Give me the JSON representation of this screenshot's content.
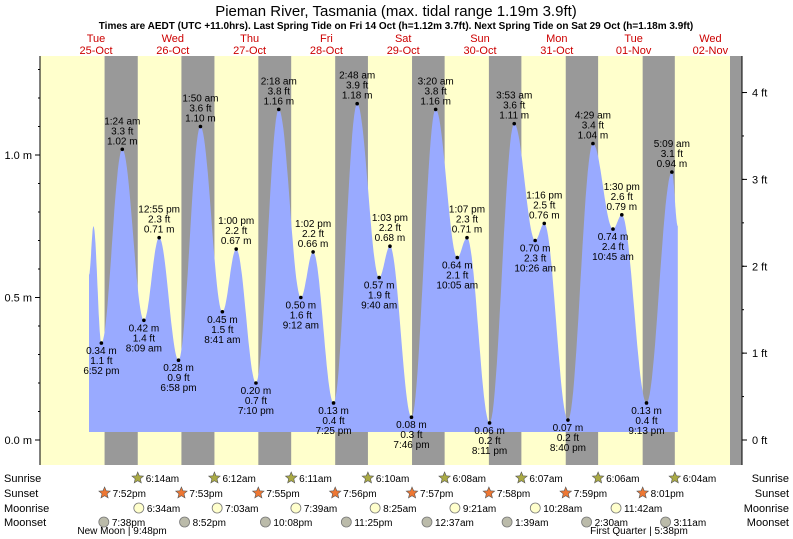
{
  "title": "Pieman River, Tasmania (max. tidal range 1.19m 3.9ft)",
  "subtitle": "Times are AEDT (UTC +11.0hrs). Last Spring Tide on Fri 14 Oct (h=1.12m 3.7ft). Next Spring Tide on Sat 29 Oct (h=1.18m 3.9ft)",
  "colors": {
    "day": "#ffffcc",
    "night": "#999999",
    "water": "#99aaff",
    "date_red": "#cc0000",
    "sun_star": "#aaaa44",
    "sunset_star": "#ee7733",
    "moonrise": "#ffffcc",
    "moonset": "#bbbbaa"
  },
  "chart_data": {
    "type": "area",
    "title": "Pieman River, Tasmania (max. tidal range 1.19m 3.9ft)",
    "ylim_m": [
      -0.06,
      1.37
    ],
    "x_range_hours": [
      0,
      196
    ],
    "left_axis": [
      {
        "v": 0.0,
        "label": "0.0 m"
      },
      {
        "v": 0.5,
        "label": "0.5 m"
      },
      {
        "v": 1.0,
        "label": "1.0 m"
      }
    ],
    "right_axis": [
      {
        "ft": 0,
        "label": "0 ft"
      },
      {
        "ft": 1,
        "label": "1 ft"
      },
      {
        "ft": 2,
        "label": "2 ft"
      },
      {
        "ft": 3,
        "label": "3 ft"
      },
      {
        "ft": 4,
        "label": "4 ft"
      }
    ],
    "days": [
      {
        "dow": "Tue",
        "date": "25-Oct"
      },
      {
        "dow": "Wed",
        "date": "26-Oct"
      },
      {
        "dow": "Thu",
        "date": "27-Oct"
      },
      {
        "dow": "Fri",
        "date": "28-Oct"
      },
      {
        "dow": "Sat",
        "date": "29-Oct"
      },
      {
        "dow": "Sun",
        "date": "30-Oct"
      },
      {
        "dow": "Mon",
        "date": "31-Oct"
      },
      {
        "dow": "Tue",
        "date": "01-Nov"
      },
      {
        "dow": "Wed",
        "date": "02-Nov"
      }
    ],
    "tides": [
      {
        "t": 18.87,
        "h": 0.34,
        "time": "6:52 pm",
        "ft": "1.1 ft",
        "m": "0.34 m"
      },
      {
        "t": 25.4,
        "h": 1.02,
        "time": "1:24 am",
        "ft": "3.3 ft",
        "m": "1.02 m"
      },
      {
        "t": 32.15,
        "h": 0.42,
        "time": "8:09 am",
        "ft": "1.4 ft",
        "m": "0.42 m"
      },
      {
        "t": 36.92,
        "h": 0.71,
        "time": "12:55 pm",
        "ft": "2.3 ft",
        "m": "0.71 m"
      },
      {
        "t": 42.97,
        "h": 0.28,
        "time": "6:58 pm",
        "ft": "0.9 ft",
        "m": "0.28 m"
      },
      {
        "t": 49.83,
        "h": 1.1,
        "time": "1:50 am",
        "ft": "3.6 ft",
        "m": "1.10 m"
      },
      {
        "t": 56.68,
        "h": 0.45,
        "time": "8:41 am",
        "ft": "1.5 ft",
        "m": "0.45 m"
      },
      {
        "t": 61.0,
        "h": 0.67,
        "time": "1:00 pm",
        "ft": "2.2 ft",
        "m": "0.67 m"
      },
      {
        "t": 67.17,
        "h": 0.2,
        "time": "7:10 pm",
        "ft": "0.7 ft",
        "m": "0.20 m"
      },
      {
        "t": 74.3,
        "h": 1.16,
        "time": "2:18 am",
        "ft": "3.8 ft",
        "m": "1.16 m"
      },
      {
        "t": 81.2,
        "h": 0.5,
        "time": "9:12 am",
        "ft": "1.6 ft",
        "m": "0.50 m"
      },
      {
        "t": 85.03,
        "h": 0.66,
        "time": "1:02 pm",
        "ft": "2.2 ft",
        "m": "0.66 m"
      },
      {
        "t": 91.42,
        "h": 0.13,
        "time": "7:25 pm",
        "ft": "0.4 ft",
        "m": "0.13 m"
      },
      {
        "t": 98.8,
        "h": 1.18,
        "time": "2:48 am",
        "ft": "3.9 ft",
        "m": "1.18 m"
      },
      {
        "t": 105.67,
        "h": 0.57,
        "time": "9:40 am",
        "ft": "1.9 ft",
        "m": "0.57 m"
      },
      {
        "t": 109.05,
        "h": 0.68,
        "time": "1:03 pm",
        "ft": "2.2 ft",
        "m": "0.68 m"
      },
      {
        "t": 115.77,
        "h": 0.08,
        "time": "7:46 pm",
        "ft": "0.3 ft",
        "m": "0.08 m"
      },
      {
        "t": 123.33,
        "h": 1.16,
        "time": "3:20 am",
        "ft": "3.8 ft",
        "m": "1.16 m"
      },
      {
        "t": 130.08,
        "h": 0.64,
        "time": "10:05 am",
        "ft": "2.1 ft",
        "m": "0.64 m"
      },
      {
        "t": 133.12,
        "h": 0.71,
        "time": "1:07 pm",
        "ft": "2.3 ft",
        "m": "0.71 m"
      },
      {
        "t": 140.18,
        "h": 0.06,
        "time": "8:11 pm",
        "ft": "0.2 ft",
        "m": "0.06 m"
      },
      {
        "t": 147.88,
        "h": 1.11,
        "time": "3:53 am",
        "ft": "3.6 ft",
        "m": "1.11 m"
      },
      {
        "t": 154.43,
        "h": 0.7,
        "time": "10:26 am",
        "ft": "2.3 ft",
        "m": "0.70 m"
      },
      {
        "t": 157.27,
        "h": 0.76,
        "time": "1:16 pm",
        "ft": "2.5 ft",
        "m": "0.76 m"
      },
      {
        "t": 164.67,
        "h": 0.07,
        "time": "8:40 pm",
        "ft": "0.2 ft",
        "m": "0.07 m"
      },
      {
        "t": 172.48,
        "h": 1.04,
        "time": "4:29 am",
        "ft": "3.4 ft",
        "m": "1.04 m"
      },
      {
        "t": 178.75,
        "h": 0.74,
        "time": "10:45 am",
        "ft": "2.4 ft",
        "m": "0.74 m"
      },
      {
        "t": 181.5,
        "h": 0.79,
        "time": "1:30 pm",
        "ft": "2.6 ft",
        "m": "0.79 m"
      },
      {
        "t": 189.22,
        "h": 0.13,
        "time": "9:13 pm",
        "ft": "0.4 ft",
        "m": "0.13 m"
      },
      {
        "t": 197.15,
        "h": 0.94,
        "time": "5:09 am",
        "ft": "3.1 ft",
        "m": "0.94 m"
      }
    ],
    "curve_start": {
      "t": 15.0,
      "h": 0.58
    },
    "curve_peak_before": {
      "t": 16.4,
      "h": 0.75
    },
    "curve_end": {
      "t": 199.0,
      "h": 0.75
    },
    "sunrise": [
      "6:14am",
      "6:12am",
      "6:11am",
      "6:10am",
      "6:08am",
      "6:07am",
      "6:06am",
      "6:04am"
    ],
    "sunset": [
      "7:52pm",
      "7:53pm",
      "7:55pm",
      "7:56pm",
      "7:57pm",
      "7:58pm",
      "7:59pm",
      "8:01pm"
    ],
    "moonrise": [
      "6:34am",
      "7:03am",
      "7:39am",
      "8:25am",
      "9:21am",
      "10:28am",
      "11:42am"
    ],
    "moonset": [
      "7:38pm",
      "8:52pm",
      "10:08pm",
      "11:25pm",
      "12:37am",
      "1:39am",
      "2:30am",
      "3:11am"
    ],
    "moon_phases": [
      {
        "label": "New Moon | 9:48pm",
        "day": 0
      },
      {
        "label": "First Quarter | 5:38pm",
        "day": 7
      }
    ],
    "row_labels": [
      "Sunrise",
      "Sunset",
      "Moonrise",
      "Moonset"
    ]
  }
}
